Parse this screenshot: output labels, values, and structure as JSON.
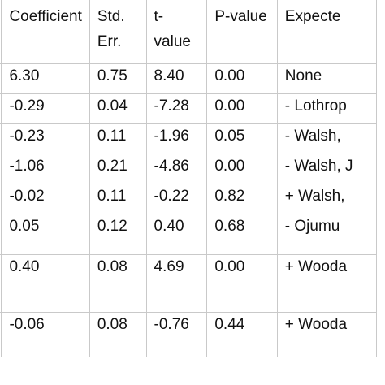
{
  "table": {
    "headers": [
      [
        "Coefficient"
      ],
      [
        "Std.",
        "Err."
      ],
      [
        "t-",
        "value"
      ],
      [
        "P-value"
      ],
      [
        "Expecte"
      ]
    ],
    "rows": [
      {
        "coefficient": "6.30",
        "std_err": "0.75",
        "t_value": "8.40",
        "p_value": "0.00",
        "expected": "None"
      },
      {
        "coefficient": "-0.29",
        "std_err": "0.04",
        "t_value": "-7.28",
        "p_value": "0.00",
        "expected": "- Lothrop"
      },
      {
        "coefficient": "-0.23",
        "std_err": "0.11",
        "t_value": "-1.96",
        "p_value": "0.05",
        "expected": "-  Walsh,"
      },
      {
        "coefficient": "-1.06",
        "std_err": "0.21",
        "t_value": "-4.86",
        "p_value": "0.00",
        "expected": "- Walsh, J"
      },
      {
        "coefficient": "-0.02",
        "std_err": "0.11",
        "t_value": "-0.22",
        "p_value": "0.82",
        "expected": "+ Walsh,"
      },
      {
        "coefficient": "0.05",
        "std_err": "0.12",
        "t_value": "0.40",
        "p_value": "0.68",
        "expected": "-  Ojumu"
      },
      {
        "coefficient": "0.40",
        "std_err": "0.08",
        "t_value": "4.69",
        "p_value": "0.00",
        "expected": "+ Wooda"
      },
      {
        "coefficient": "-0.06",
        "std_err": "0.08",
        "t_value": "-0.76",
        "p_value": "0.44",
        "expected": "+ Wooda"
      }
    ]
  }
}
